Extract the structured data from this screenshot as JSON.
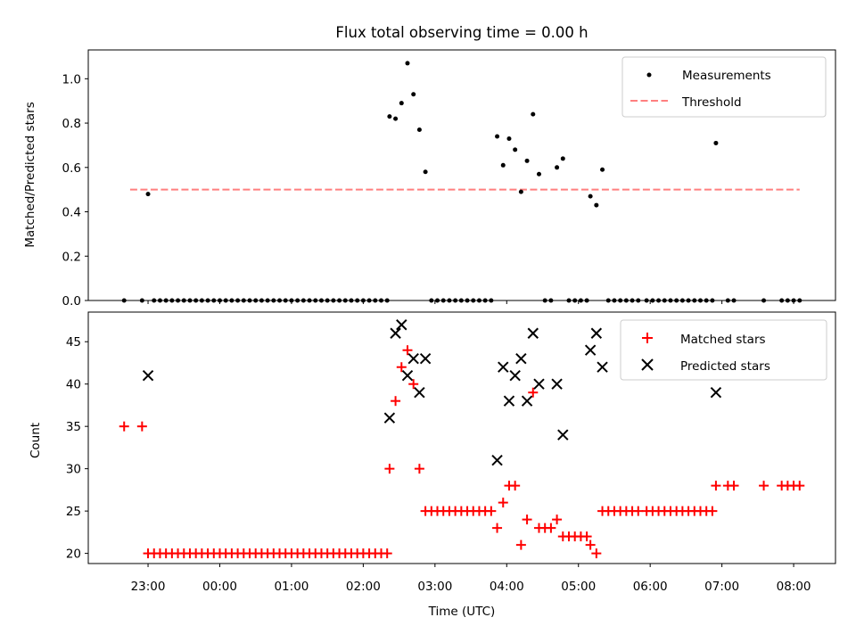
{
  "figure": {
    "title": "Flux total observing time = 0.00 h"
  },
  "chart_data": [
    {
      "type": "scatter",
      "ylabel": "Matched/Predicted stars",
      "xlabel": "",
      "ylim": [
        0,
        1.13
      ],
      "yticks": [
        0.0,
        0.2,
        0.4,
        0.6,
        0.8,
        1.0
      ],
      "ytick_labels": [
        "0.0",
        "0.2",
        "0.4",
        "0.6",
        "0.8",
        "1.0"
      ],
      "threshold": {
        "name": "Threshold",
        "y": 0.5,
        "x_start": "22:45",
        "x_end": "08:05",
        "color": "#ff7f7f",
        "style": "dashed"
      },
      "series": [
        {
          "name": "Measurements",
          "marker": "dot",
          "color": "#000000",
          "points": [
            [
              "22:40",
              0.0
            ],
            [
              "22:55",
              0.0
            ],
            [
              "23:00",
              0.48
            ],
            [
              "23:05",
              0.0
            ],
            [
              "23:10",
              0.0
            ],
            [
              "23:15",
              0.0
            ],
            [
              "23:20",
              0.0
            ],
            [
              "23:25",
              0.0
            ],
            [
              "23:30",
              0.0
            ],
            [
              "23:35",
              0.0
            ],
            [
              "23:40",
              0.0
            ],
            [
              "23:45",
              0.0
            ],
            [
              "23:50",
              0.0
            ],
            [
              "23:55",
              0.0
            ],
            [
              "00:00",
              0.0
            ],
            [
              "00:05",
              0.0
            ],
            [
              "00:10",
              0.0
            ],
            [
              "00:15",
              0.0
            ],
            [
              "00:20",
              0.0
            ],
            [
              "00:25",
              0.0
            ],
            [
              "00:30",
              0.0
            ],
            [
              "00:35",
              0.0
            ],
            [
              "00:40",
              0.0
            ],
            [
              "00:45",
              0.0
            ],
            [
              "00:50",
              0.0
            ],
            [
              "00:55",
              0.0
            ],
            [
              "01:00",
              0.0
            ],
            [
              "01:05",
              0.0
            ],
            [
              "01:10",
              0.0
            ],
            [
              "01:15",
              0.0
            ],
            [
              "01:20",
              0.0
            ],
            [
              "01:25",
              0.0
            ],
            [
              "01:30",
              0.0
            ],
            [
              "01:35",
              0.0
            ],
            [
              "01:40",
              0.0
            ],
            [
              "01:45",
              0.0
            ],
            [
              "01:50",
              0.0
            ],
            [
              "01:55",
              0.0
            ],
            [
              "02:00",
              0.0
            ],
            [
              "02:05",
              0.0
            ],
            [
              "02:10",
              0.0
            ],
            [
              "02:15",
              0.0
            ],
            [
              "02:20",
              0.0
            ],
            [
              "02:22",
              0.83
            ],
            [
              "02:27",
              0.82
            ],
            [
              "02:32",
              0.89
            ],
            [
              "02:37",
              1.07
            ],
            [
              "02:42",
              0.93
            ],
            [
              "02:47",
              0.77
            ],
            [
              "02:52",
              0.58
            ],
            [
              "02:57",
              0.0
            ],
            [
              "03:02",
              0.0
            ],
            [
              "03:07",
              0.0
            ],
            [
              "03:12",
              0.0
            ],
            [
              "03:17",
              0.0
            ],
            [
              "03:22",
              0.0
            ],
            [
              "03:27",
              0.0
            ],
            [
              "03:32",
              0.0
            ],
            [
              "03:37",
              0.0
            ],
            [
              "03:42",
              0.0
            ],
            [
              "03:47",
              0.0
            ],
            [
              "03:52",
              0.74
            ],
            [
              "03:57",
              0.61
            ],
            [
              "04:02",
              0.73
            ],
            [
              "04:07",
              0.68
            ],
            [
              "04:12",
              0.49
            ],
            [
              "04:17",
              0.63
            ],
            [
              "04:22",
              0.84
            ],
            [
              "04:27",
              0.57
            ],
            [
              "04:32",
              0.0
            ],
            [
              "04:37",
              0.0
            ],
            [
              "04:42",
              0.6
            ],
            [
              "04:47",
              0.64
            ],
            [
              "04:52",
              0.0
            ],
            [
              "04:57",
              0.0
            ],
            [
              "05:02",
              0.0
            ],
            [
              "05:07",
              0.0
            ],
            [
              "05:10",
              0.47
            ],
            [
              "05:15",
              0.43
            ],
            [
              "05:20",
              0.59
            ],
            [
              "05:25",
              0.0
            ],
            [
              "05:30",
              0.0
            ],
            [
              "05:35",
              0.0
            ],
            [
              "05:40",
              0.0
            ],
            [
              "05:45",
              0.0
            ],
            [
              "05:50",
              0.0
            ],
            [
              "05:57",
              0.0
            ],
            [
              "06:02",
              0.0
            ],
            [
              "06:07",
              0.0
            ],
            [
              "06:12",
              0.0
            ],
            [
              "06:17",
              0.0
            ],
            [
              "06:22",
              0.0
            ],
            [
              "06:27",
              0.0
            ],
            [
              "06:32",
              0.0
            ],
            [
              "06:37",
              0.0
            ],
            [
              "06:42",
              0.0
            ],
            [
              "06:47",
              0.0
            ],
            [
              "06:52",
              0.0
            ],
            [
              "06:55",
              0.71
            ],
            [
              "07:05",
              0.0
            ],
            [
              "07:10",
              0.0
            ],
            [
              "07:35",
              0.0
            ],
            [
              "07:50",
              0.0
            ],
            [
              "07:55",
              0.0
            ],
            [
              "08:00",
              0.0
            ],
            [
              "08:05",
              0.0
            ]
          ]
        }
      ],
      "legend": {
        "placement": "top-right",
        "entries": [
          "Measurements",
          "Threshold"
        ]
      },
      "grid": false
    },
    {
      "type": "scatter",
      "xlabel": "Time (UTC)",
      "ylabel": "Count",
      "ylim": [
        18.8,
        48.5
      ],
      "yticks": [
        20,
        25,
        30,
        35,
        40,
        45
      ],
      "ytick_labels": [
        "20",
        "25",
        "30",
        "35",
        "40",
        "45"
      ],
      "xlim": [
        "22:10",
        "08:35"
      ],
      "xticks": [
        "23:00",
        "00:00",
        "01:00",
        "02:00",
        "03:00",
        "04:00",
        "05:00",
        "06:00",
        "07:00",
        "08:00"
      ],
      "xtick_labels": [
        "23:00",
        "00:00",
        "01:00",
        "02:00",
        "03:00",
        "04:00",
        "05:00",
        "06:00",
        "07:00",
        "08:00"
      ],
      "series": [
        {
          "name": "Matched stars",
          "marker": "plus",
          "color": "#ff0000",
          "points": [
            [
              "22:40",
              35
            ],
            [
              "22:55",
              35
            ],
            [
              "23:00",
              20
            ],
            [
              "23:05",
              20
            ],
            [
              "23:10",
              20
            ],
            [
              "23:15",
              20
            ],
            [
              "23:20",
              20
            ],
            [
              "23:25",
              20
            ],
            [
              "23:30",
              20
            ],
            [
              "23:35",
              20
            ],
            [
              "23:40",
              20
            ],
            [
              "23:45",
              20
            ],
            [
              "23:50",
              20
            ],
            [
              "23:55",
              20
            ],
            [
              "00:00",
              20
            ],
            [
              "00:05",
              20
            ],
            [
              "00:10",
              20
            ],
            [
              "00:15",
              20
            ],
            [
              "00:20",
              20
            ],
            [
              "00:25",
              20
            ],
            [
              "00:30",
              20
            ],
            [
              "00:35",
              20
            ],
            [
              "00:40",
              20
            ],
            [
              "00:45",
              20
            ],
            [
              "00:50",
              20
            ],
            [
              "00:55",
              20
            ],
            [
              "01:00",
              20
            ],
            [
              "01:05",
              20
            ],
            [
              "01:10",
              20
            ],
            [
              "01:15",
              20
            ],
            [
              "01:20",
              20
            ],
            [
              "01:25",
              20
            ],
            [
              "01:30",
              20
            ],
            [
              "01:35",
              20
            ],
            [
              "01:40",
              20
            ],
            [
              "01:45",
              20
            ],
            [
              "01:50",
              20
            ],
            [
              "01:55",
              20
            ],
            [
              "02:00",
              20
            ],
            [
              "02:05",
              20
            ],
            [
              "02:10",
              20
            ],
            [
              "02:15",
              20
            ],
            [
              "02:20",
              20
            ],
            [
              "02:22",
              30
            ],
            [
              "02:27",
              38
            ],
            [
              "02:32",
              42
            ],
            [
              "02:37",
              44
            ],
            [
              "02:42",
              40
            ],
            [
              "02:47",
              30
            ],
            [
              "02:52",
              25
            ],
            [
              "02:57",
              25
            ],
            [
              "03:02",
              25
            ],
            [
              "03:07",
              25
            ],
            [
              "03:12",
              25
            ],
            [
              "03:17",
              25
            ],
            [
              "03:22",
              25
            ],
            [
              "03:27",
              25
            ],
            [
              "03:32",
              25
            ],
            [
              "03:37",
              25
            ],
            [
              "03:42",
              25
            ],
            [
              "03:47",
              25
            ],
            [
              "03:52",
              23
            ],
            [
              "03:57",
              26
            ],
            [
              "04:02",
              28
            ],
            [
              "04:07",
              28
            ],
            [
              "04:12",
              21
            ],
            [
              "04:17",
              24
            ],
            [
              "04:22",
              39
            ],
            [
              "04:27",
              23
            ],
            [
              "04:32",
              23
            ],
            [
              "04:37",
              23
            ],
            [
              "04:42",
              24
            ],
            [
              "04:47",
              22
            ],
            [
              "04:52",
              22
            ],
            [
              "04:57",
              22
            ],
            [
              "05:02",
              22
            ],
            [
              "05:07",
              22
            ],
            [
              "05:10",
              21
            ],
            [
              "05:15",
              20
            ],
            [
              "05:20",
              25
            ],
            [
              "05:25",
              25
            ],
            [
              "05:30",
              25
            ],
            [
              "05:35",
              25
            ],
            [
              "05:40",
              25
            ],
            [
              "05:45",
              25
            ],
            [
              "05:50",
              25
            ],
            [
              "05:57",
              25
            ],
            [
              "06:02",
              25
            ],
            [
              "06:07",
              25
            ],
            [
              "06:12",
              25
            ],
            [
              "06:17",
              25
            ],
            [
              "06:22",
              25
            ],
            [
              "06:27",
              25
            ],
            [
              "06:32",
              25
            ],
            [
              "06:37",
              25
            ],
            [
              "06:42",
              25
            ],
            [
              "06:47",
              25
            ],
            [
              "06:52",
              25
            ],
            [
              "06:55",
              28
            ],
            [
              "07:05",
              28
            ],
            [
              "07:10",
              28
            ],
            [
              "07:35",
              28
            ],
            [
              "07:50",
              28
            ],
            [
              "07:55",
              28
            ],
            [
              "08:00",
              28
            ],
            [
              "08:05",
              28
            ]
          ]
        },
        {
          "name": "Predicted stars",
          "marker": "x",
          "color": "#000000",
          "points": [
            [
              "23:00",
              41
            ],
            [
              "02:22",
              36
            ],
            [
              "02:27",
              46
            ],
            [
              "02:32",
              47
            ],
            [
              "02:37",
              41
            ],
            [
              "02:42",
              43
            ],
            [
              "02:47",
              39
            ],
            [
              "02:52",
              43
            ],
            [
              "03:52",
              31
            ],
            [
              "03:57",
              42
            ],
            [
              "04:02",
              38
            ],
            [
              "04:07",
              41
            ],
            [
              "04:12",
              43
            ],
            [
              "04:17",
              38
            ],
            [
              "04:22",
              46
            ],
            [
              "04:27",
              40
            ],
            [
              "04:42",
              40
            ],
            [
              "04:47",
              34
            ],
            [
              "05:10",
              44
            ],
            [
              "05:15",
              46
            ],
            [
              "05:20",
              42
            ],
            [
              "06:55",
              39
            ]
          ]
        }
      ],
      "legend": {
        "placement": "top-right",
        "entries": [
          "Matched stars",
          "Predicted stars"
        ]
      },
      "grid": false
    }
  ]
}
